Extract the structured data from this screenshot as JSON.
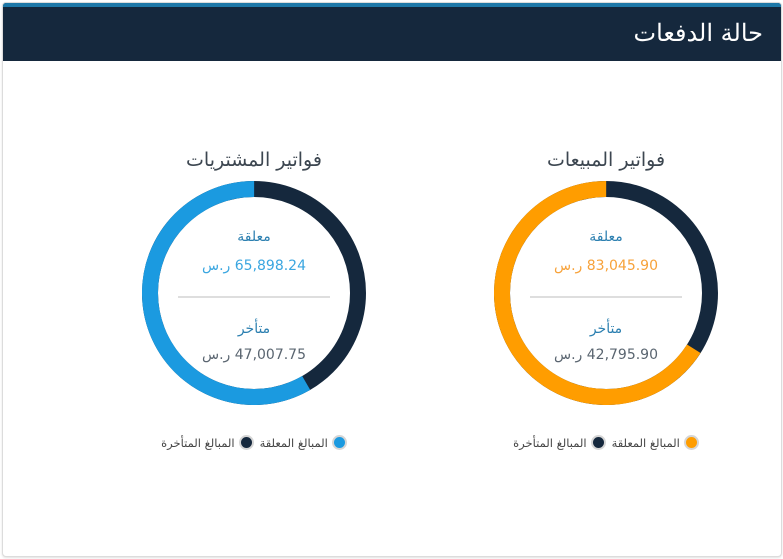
{
  "header": {
    "title": "حالة الدفعات"
  },
  "currency": "ر.س",
  "colors": {
    "dark": "#15283d",
    "sales_accent": "#ff9d00",
    "purchases_accent": "#1b9ae0"
  },
  "panels": [
    {
      "id": "sales",
      "title": "فواتير المبيعات",
      "pending_label": "معلقة",
      "pending_value": "83,045.90 ر.س",
      "late_label": "متأخر",
      "late_value": "42,795.90 ر.س",
      "legend": [
        "المبالغ المعلقة",
        "المبالغ المتأخرة"
      ]
    },
    {
      "id": "purchases",
      "title": "فواتير المشتريات",
      "pending_label": "معلقة",
      "pending_value": "65,898.24 ر.س",
      "late_label": "متأخر",
      "late_value": "47,007.75 ر.س",
      "legend": [
        "المبالغ المعلقة",
        "المبالغ المتأخرة"
      ]
    }
  ],
  "chart_data": [
    {
      "type": "pie",
      "title": "فواتير المبيعات",
      "categories": [
        "المبالغ المعلقة",
        "المبالغ المتأخرة"
      ],
      "values": [
        83045.9,
        42795.9
      ],
      "colors": [
        "#ff9d00",
        "#15283d"
      ],
      "donut": true,
      "legend_position": "bottom"
    },
    {
      "type": "pie",
      "title": "فواتير المشتريات",
      "categories": [
        "المبالغ المعلقة",
        "المبالغ المتأخرة"
      ],
      "values": [
        65898.24,
        47007.75
      ],
      "colors": [
        "#1b9ae0",
        "#15283d"
      ],
      "donut": true,
      "legend_position": "bottom"
    }
  ]
}
